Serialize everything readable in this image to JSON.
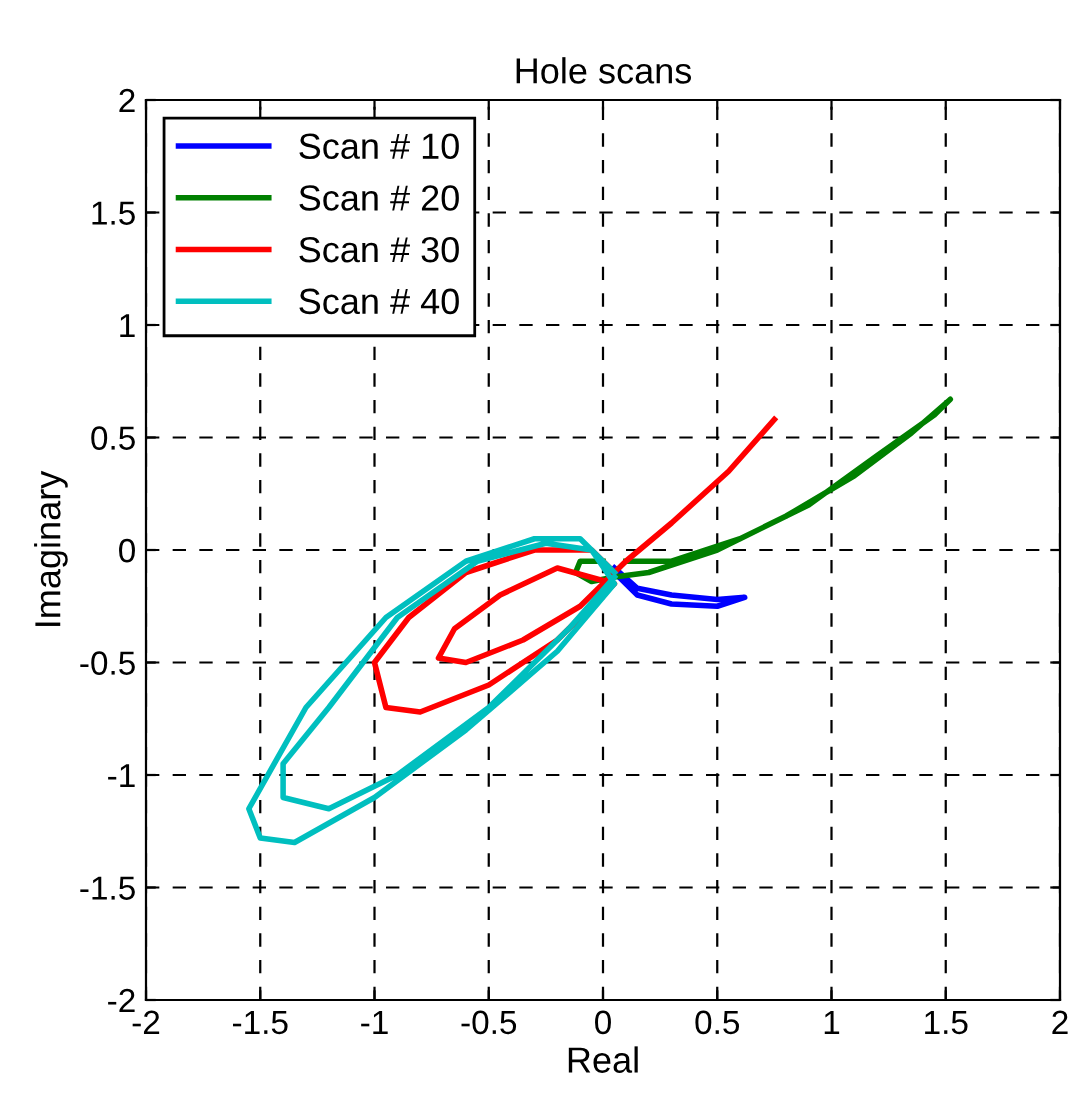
{
  "chart_data": {
    "type": "line",
    "title": "Hole scans",
    "xlabel": "Real",
    "ylabel": "Imaginary",
    "xlim": [
      -2,
      2
    ],
    "ylim": [
      -2,
      2
    ],
    "xticks": [
      -2,
      -1.5,
      -1,
      -0.5,
      0,
      0.5,
      1,
      1.5,
      2
    ],
    "yticks": [
      -2,
      -1.5,
      -1,
      -0.5,
      0,
      0.5,
      1,
      1.5,
      2
    ],
    "grid": true,
    "legend": "top left",
    "line_style": "solid",
    "marker": "none",
    "series": [
      {
        "name": "Scan # 10",
        "color": "#0000ff",
        "x": [
          0.05,
          0.15,
          0.3,
          0.5,
          0.62,
          0.5,
          0.3,
          0.15,
          0.05
        ],
        "values": [
          -0.1,
          -0.2,
          -0.24,
          -0.25,
          -0.21,
          -0.22,
          -0.2,
          -0.17,
          -0.08
        ]
      },
      {
        "name": "Scan # 20",
        "color": "#008000",
        "x": [
          0,
          -0.1,
          -0.12,
          -0.05,
          0.05,
          0.2,
          0.5,
          0.8,
          1.1,
          1.35,
          1.52,
          1.45,
          1.2,
          0.9,
          0.6,
          0.3,
          0.1
        ],
        "values": [
          -0.05,
          -0.05,
          -0.1,
          -0.14,
          -0.12,
          -0.1,
          0.0,
          0.15,
          0.33,
          0.52,
          0.67,
          0.6,
          0.42,
          0.2,
          0.05,
          -0.05,
          -0.05
        ]
      },
      {
        "name": "Scan # 30",
        "color": "#ff0000",
        "x": [
          0.05,
          -0.05,
          -0.3,
          -0.6,
          -0.85,
          -1.0,
          -0.95,
          -0.8,
          -0.5,
          -0.2,
          0.05,
          -0.2,
          -0.45,
          -0.65,
          -0.72,
          -0.6,
          -0.35,
          -0.1,
          0.1,
          0.3,
          0.55,
          0.75
        ],
        "values": [
          -0.1,
          0.0,
          0.0,
          -0.1,
          -0.3,
          -0.5,
          -0.7,
          -0.72,
          -0.6,
          -0.4,
          -0.15,
          -0.08,
          -0.2,
          -0.35,
          -0.48,
          -0.5,
          -0.4,
          -0.25,
          -0.05,
          0.12,
          0.35,
          0.58
        ]
      },
      {
        "name": "Scan # 40",
        "color": "#00bfbf",
        "x": [
          0.05,
          -0.1,
          -0.3,
          -0.6,
          -0.95,
          -1.3,
          -1.55,
          -1.5,
          -1.35,
          -1.0,
          -0.6,
          -0.2,
          0.05,
          -0.05,
          -0.25,
          -0.55,
          -0.9,
          -1.2,
          -1.4,
          -1.4,
          -1.2,
          -0.9,
          -0.5,
          -0.15,
          0.05
        ],
        "values": [
          -0.1,
          0.05,
          0.05,
          -0.05,
          -0.3,
          -0.7,
          -1.15,
          -1.28,
          -1.3,
          -1.1,
          -0.8,
          -0.45,
          -0.15,
          0.0,
          0.03,
          -0.05,
          -0.3,
          -0.7,
          -0.95,
          -1.1,
          -1.15,
          -1.0,
          -0.7,
          -0.35,
          -0.12
        ]
      }
    ]
  }
}
